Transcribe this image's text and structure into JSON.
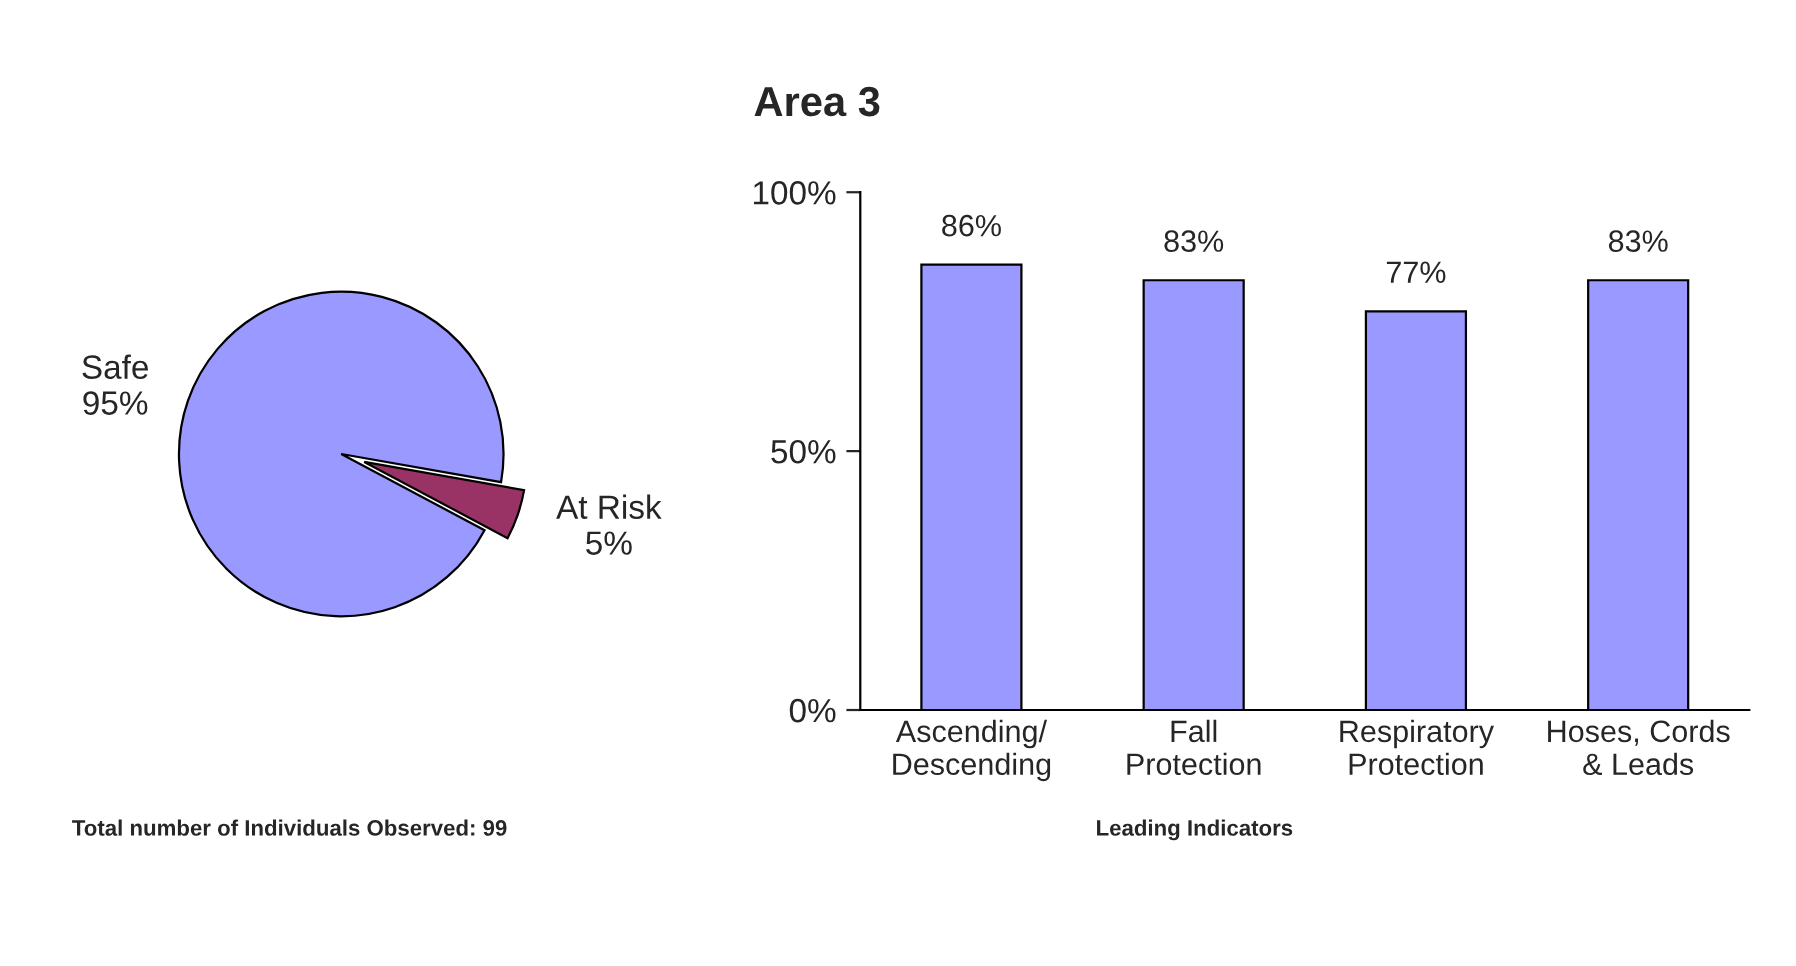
{
  "chart_data": [
    {
      "type": "pie",
      "categories": [
        "Safe",
        "At Risk"
      ],
      "values": [
        95,
        5
      ],
      "colors": [
        "#9999ff",
        "#993366"
      ],
      "value_labels": [
        "95%",
        "5%"
      ],
      "annotations": [
        "Total number of Individuals Observed: 99"
      ]
    },
    {
      "type": "bar",
      "title": "Area 3",
      "xlabel": "Leading Indicators",
      "categories": [
        "Ascending/\nDescending",
        "Fall\nProtection",
        "Respiratory\nProtection",
        "Hoses, Cords\n& Leads"
      ],
      "values": [
        86,
        83,
        77,
        83
      ],
      "color": "#9999ff",
      "value_labels": [
        "86%",
        "83%",
        "77%",
        "83%"
      ],
      "ylim": [
        0,
        100
      ],
      "yticks": [
        {
          "value": 0,
          "label": "0%"
        },
        {
          "value": 50,
          "label": "50%"
        },
        {
          "value": 100,
          "label": "100%"
        }
      ],
      "grid": false,
      "legend": false
    }
  ]
}
